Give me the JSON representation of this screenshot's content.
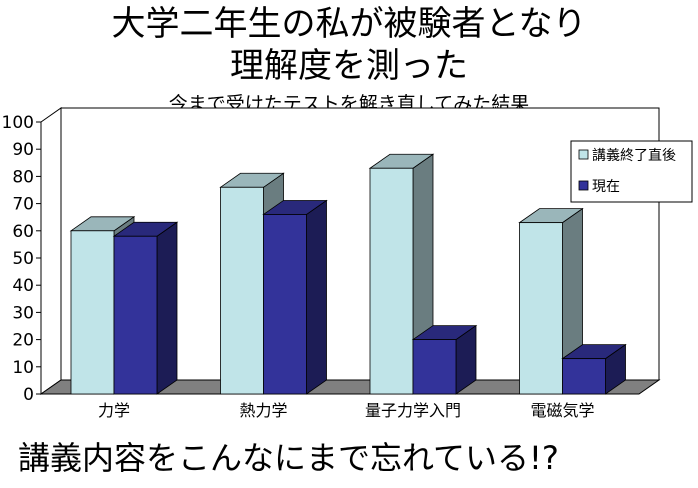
{
  "slide": {
    "title_line1": "大学二年生の私が被験者となり",
    "title_line2": "理解度を測った",
    "subtitle": "今まで受けたテストを解き直してみた結果",
    "caption": "講義内容をこんなにまで忘れている!?"
  },
  "chart_data": {
    "type": "bar",
    "style": "3d-clustered",
    "categories": [
      "力学",
      "熱力学",
      "量子力学入門",
      "電磁気学"
    ],
    "series": [
      {
        "name": "講義終了直後",
        "values": [
          60,
          76,
          83,
          63
        ],
        "color": "#c0e4e8"
      },
      {
        "name": "現在",
        "values": [
          58,
          66,
          20,
          13
        ],
        "color": "#33339a"
      }
    ],
    "ylim": [
      0,
      100
    ],
    "yticks": [
      "0",
      "10",
      "20",
      "30",
      "40",
      "50",
      "60",
      "70",
      "80",
      "90",
      "100"
    ],
    "grid": false,
    "legend_position": "right",
    "colors": {
      "floor": "#808080",
      "wall": "#ffffff",
      "outline": "#000000"
    }
  }
}
